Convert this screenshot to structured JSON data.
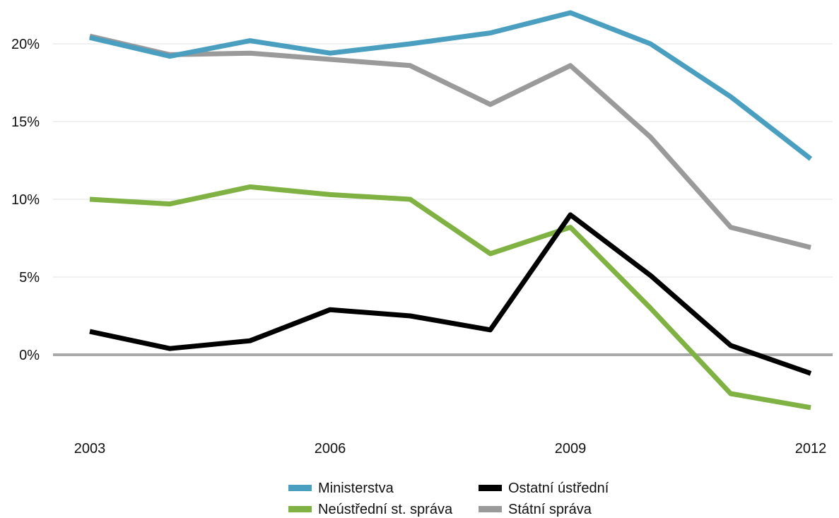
{
  "chart_data": {
    "type": "line",
    "title": "",
    "xlabel": "",
    "ylabel": "",
    "x": [
      2003,
      2004,
      2005,
      2006,
      2007,
      2008,
      2009,
      2010,
      2011,
      2012
    ],
    "x_tick_labels": [
      "2003",
      "2006",
      "2009",
      "2012"
    ],
    "x_tick_values": [
      2003,
      2006,
      2009,
      2012
    ],
    "y_tick_labels": [
      "20%",
      "15%",
      "10%",
      "5%",
      "0%"
    ],
    "y_tick_values": [
      20,
      15,
      10,
      5,
      0
    ],
    "ylim": [
      -4,
      22
    ],
    "y_unit": "%",
    "grid": true,
    "legend_position": "bottom",
    "series": [
      {
        "name": "Ministerstva",
        "color": "#4a9fc0",
        "values": [
          20.4,
          19.2,
          20.2,
          19.4,
          20.0,
          20.7,
          22.0,
          20.0,
          16.6,
          12.6
        ]
      },
      {
        "name": "Ostatní ústřední",
        "color": "#000000",
        "values": [
          1.5,
          0.4,
          0.9,
          2.9,
          2.5,
          1.6,
          9.0,
          5.1,
          0.6,
          -1.2
        ]
      },
      {
        "name": "Neústřední st. správa",
        "color": "#7fb243",
        "values": [
          10.0,
          9.7,
          10.8,
          10.3,
          10.0,
          6.5,
          8.2,
          3.0,
          -2.5,
          -3.4
        ]
      },
      {
        "name": "Státní správa",
        "color": "#9a9a9a",
        "values": [
          20.5,
          19.3,
          19.4,
          19.0,
          18.6,
          16.1,
          18.6,
          14.0,
          8.2,
          6.9
        ]
      }
    ]
  }
}
